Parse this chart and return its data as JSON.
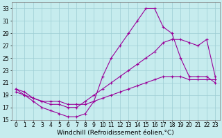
{
  "xlabel": "Windchill (Refroidissement éolien,°C)",
  "bg_color": "#c6ecee",
  "grid_color": "#9dcdd4",
  "line_color": "#990099",
  "xlim": [
    -0.5,
    23.5
  ],
  "ylim": [
    15,
    34
  ],
  "xticks": [
    0,
    1,
    2,
    3,
    4,
    5,
    6,
    7,
    8,
    9,
    10,
    11,
    12,
    13,
    14,
    15,
    16,
    17,
    18,
    19,
    20,
    21,
    22,
    23
  ],
  "yticks": [
    15,
    17,
    19,
    21,
    23,
    25,
    27,
    29,
    31,
    33
  ],
  "line1_x": [
    0,
    1,
    2,
    3,
    4,
    5,
    6,
    7,
    8,
    9,
    10,
    11,
    12,
    13,
    14,
    15,
    16,
    17,
    18,
    19,
    20,
    21,
    22,
    23
  ],
  "line1_y": [
    19.5,
    19,
    18.5,
    18,
    18,
    18,
    17.5,
    17.5,
    17.5,
    18,
    18.5,
    19,
    19.5,
    20,
    20.5,
    21,
    21.5,
    22,
    22,
    22,
    21.5,
    21.5,
    21.5,
    21.5
  ],
  "line2_x": [
    0,
    1,
    2,
    3,
    4,
    5,
    6,
    7,
    8,
    9,
    10,
    11,
    12,
    13,
    14,
    15,
    16,
    17,
    18,
    19,
    20,
    21,
    22,
    23
  ],
  "line2_y": [
    20,
    19.5,
    18.5,
    18,
    17.5,
    17.5,
    17,
    17,
    18,
    19,
    20,
    21,
    22,
    23,
    24,
    25,
    26,
    27.5,
    28,
    28,
    27.5,
    27,
    28,
    22
  ],
  "line3_x": [
    0,
    1,
    2,
    3,
    4,
    5,
    6,
    7,
    8,
    9,
    10,
    11,
    12,
    13,
    14,
    15,
    16,
    17,
    18,
    19,
    20,
    21,
    22,
    23
  ],
  "line3_y": [
    20,
    19,
    18,
    17,
    16.5,
    16,
    15.5,
    15.5,
    16,
    18,
    22,
    25,
    27,
    29,
    31,
    33,
    33,
    30,
    29,
    25,
    22,
    22,
    22,
    21
  ],
  "marker": "+",
  "markersize": 3,
  "linewidth": 0.8,
  "tick_fontsize": 5.5,
  "xlabel_fontsize": 6.5
}
